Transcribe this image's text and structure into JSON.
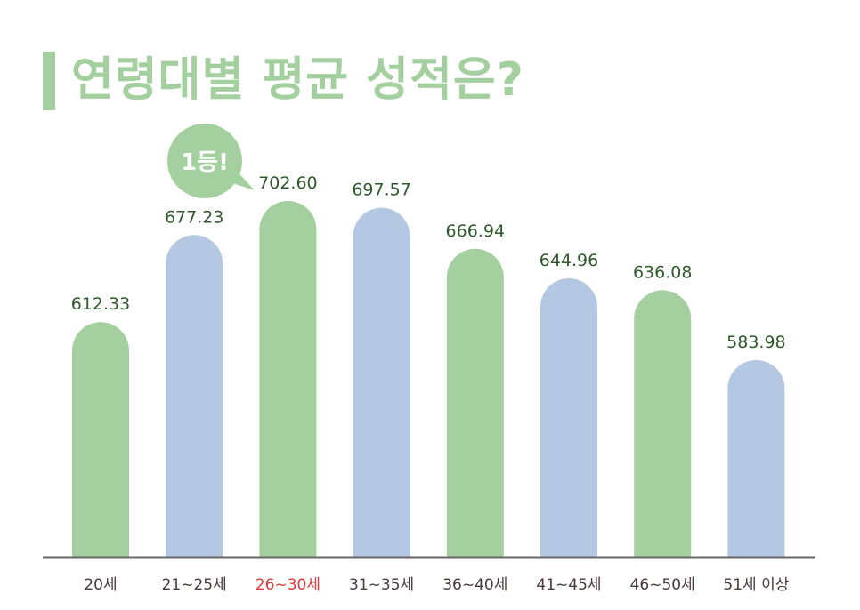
{
  "title": "연령대별 평균 성적은?",
  "badge": {
    "text": "1등!",
    "color": "#a4d0a0"
  },
  "colors": {
    "green": "#a4d0a0",
    "blue": "#b4c8e4",
    "axis": "#666666",
    "value_label": "#2f5a2c",
    "highlight": "#e03a3a"
  },
  "chart_data": {
    "type": "bar",
    "title": "연령대별 평균 성적은?",
    "xlabel": "",
    "ylabel": "",
    "categories": [
      "20세",
      "21~25세",
      "26~30세",
      "31~35세",
      "36~40세",
      "41~45세",
      "46~50세",
      "51세 이상"
    ],
    "values": [
      612.33,
      677.23,
      702.6,
      697.57,
      666.94,
      644.96,
      636.08,
      583.98
    ],
    "value_labels": [
      "612.33",
      "677.23",
      "702.60",
      "697.57",
      "666.94",
      "644.96",
      "636.08",
      "583.98"
    ],
    "bar_colors": [
      "green",
      "blue",
      "green",
      "blue",
      "green",
      "blue",
      "green",
      "blue"
    ],
    "highlight_index": 2,
    "grid": false,
    "legend": "none"
  }
}
